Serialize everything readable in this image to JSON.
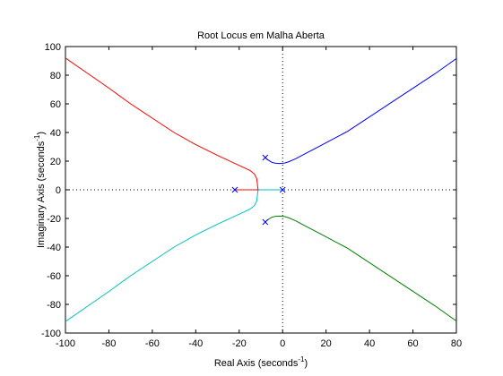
{
  "chart_data": {
    "type": "line",
    "title": "Root Locus em Malha Aberta",
    "xlabel": "Real Axis (seconds",
    "xlabel_sup": "-1",
    "xlabel_close": ")",
    "ylabel": "Imaginary Axis (seconds",
    "ylabel_sup": "-1",
    "ylabel_close": ")",
    "xlim": [
      -100,
      80
    ],
    "ylim": [
      -100,
      100
    ],
    "xticks": [
      -100,
      -80,
      -60,
      -40,
      -20,
      0,
      20,
      40,
      60,
      80
    ],
    "yticks": [
      -100,
      -80,
      -60,
      -40,
      -20,
      0,
      20,
      40,
      60,
      80,
      100
    ],
    "grid": false,
    "reference_lines": {
      "x": 0,
      "y": 0,
      "style": "dotted"
    },
    "poles": [
      {
        "x": -8,
        "y": 22.5
      },
      {
        "x": -8,
        "y": -22.5
      },
      {
        "x": -22,
        "y": 0
      },
      {
        "x": 0,
        "y": 0
      }
    ],
    "pole_color": "#0000ff",
    "series": [
      {
        "color": "#0000ff",
        "x": [
          -8,
          -7,
          -6,
          -5,
          -3.5,
          -1.5,
          1,
          3,
          6,
          10,
          15,
          20,
          30,
          40,
          50,
          60,
          70,
          80
        ],
        "y": [
          22.5,
          21.2,
          20.1,
          19.2,
          18.6,
          18.4,
          18.7,
          19.7,
          21.7,
          24.9,
          28.9,
          32.9,
          40.9,
          50.9,
          60.9,
          70.9,
          80.9,
          91.6
        ]
      },
      {
        "color": "#008000",
        "x": [
          -8,
          -7,
          -6,
          -5,
          -3.5,
          -1.5,
          1,
          3,
          6,
          10,
          15,
          20,
          30,
          40,
          50,
          60,
          70,
          80
        ],
        "y": [
          -22.5,
          -21.2,
          -20.1,
          -19.2,
          -18.6,
          -18.4,
          -18.7,
          -19.7,
          -21.7,
          -24.9,
          -28.9,
          -32.9,
          -40.9,
          -50.9,
          -60.9,
          -70.9,
          -80.9,
          -91.6
        ]
      },
      {
        "color": "#00bfbf",
        "x": [
          0,
          -5,
          -10,
          -11.3,
          -11.5,
          -11.7,
          -12,
          -13,
          -15,
          -20,
          -30,
          -40,
          -50,
          -60,
          -70,
          -80,
          -90,
          -100
        ],
        "y": [
          0,
          0,
          0,
          0,
          -2,
          -5,
          -8,
          -11,
          -13.5,
          -17,
          -24,
          -31.5,
          -40,
          -50,
          -60,
          -71,
          -81.5,
          -92
        ]
      },
      {
        "color": "#ff0000",
        "x": [
          -22,
          -18,
          -14,
          -11.3,
          -11.5,
          -11.7,
          -12,
          -13,
          -15,
          -20,
          -30,
          -40,
          -50,
          -60,
          -70,
          -80,
          -90,
          -100
        ],
        "y": [
          0,
          0,
          0,
          0,
          2,
          5,
          8,
          11,
          13.5,
          17,
          24,
          31.5,
          40,
          50,
          60,
          71,
          81.5,
          92
        ]
      }
    ]
  }
}
